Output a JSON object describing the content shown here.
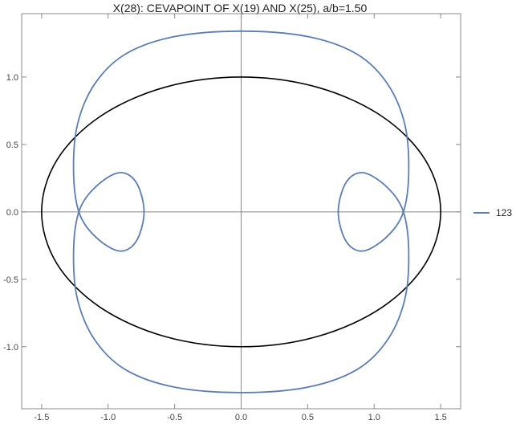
{
  "chart_data": {
    "type": "line",
    "title": "X(28): CEVAPOINT OF X(19) AND X(25), a/b=1.50",
    "xlabel": "",
    "ylabel": "",
    "xlim": [
      -1.65,
      1.65
    ],
    "ylim": [
      -1.46,
      1.47
    ],
    "xticks": [
      -1.5,
      -1.0,
      -0.5,
      0.0,
      0.5,
      1.0,
      1.5
    ],
    "xtick_labels": [
      "-1.5",
      "-1.0",
      "-0.5",
      "0.0",
      "0.5",
      "1.0",
      "1.5"
    ],
    "yticks": [
      -1.0,
      -0.5,
      0.0,
      0.5,
      1.0
    ],
    "ytick_labels": [
      "-1.0",
      "-0.5",
      "0.0",
      "0.5",
      "1.0"
    ],
    "grid": false,
    "legend_position": "right",
    "series": [
      {
        "name": "",
        "color": "#000000",
        "points": [
          [
            1.5,
            0.0
          ],
          [
            1.386,
            0.383
          ],
          [
            1.061,
            0.707
          ],
          [
            0.574,
            0.924
          ],
          [
            0.0,
            1.0
          ],
          [
            -0.574,
            0.924
          ],
          [
            -1.061,
            0.707
          ],
          [
            -1.386,
            0.383
          ],
          [
            -1.5,
            0.0
          ],
          [
            -1.386,
            -0.383
          ],
          [
            -1.061,
            -0.707
          ],
          [
            -0.574,
            -0.924
          ],
          [
            0.0,
            -1.0
          ],
          [
            0.574,
            -0.924
          ],
          [
            1.061,
            -0.707
          ],
          [
            1.386,
            -0.383
          ],
          [
            1.5,
            0.0
          ]
        ]
      },
      {
        "name": "123",
        "color": "#5b7db3",
        "points": [
          [
            0.0,
            1.34
          ],
          [
            0.5,
            1.3
          ],
          [
            0.87,
            1.17
          ],
          [
            1.1,
            0.95
          ],
          [
            1.23,
            0.65
          ],
          [
            1.26,
            0.3
          ],
          [
            1.22,
            0.0
          ],
          [
            1.1,
            -0.18
          ],
          [
            0.92,
            -0.29
          ],
          [
            0.79,
            -0.22
          ],
          [
            0.73,
            0.0
          ],
          [
            0.79,
            0.22
          ],
          [
            0.92,
            0.29
          ],
          [
            1.1,
            0.18
          ],
          [
            1.22,
            0.0
          ],
          [
            1.26,
            -0.3
          ],
          [
            1.23,
            -0.65
          ],
          [
            1.1,
            -0.95
          ],
          [
            0.87,
            -1.17
          ],
          [
            0.5,
            -1.3
          ],
          [
            0.0,
            -1.34
          ],
          [
            -0.5,
            -1.3
          ],
          [
            -0.87,
            -1.17
          ],
          [
            -1.1,
            -0.95
          ],
          [
            -1.23,
            -0.65
          ],
          [
            -1.26,
            -0.3
          ],
          [
            -1.22,
            0.0
          ],
          [
            -1.1,
            0.18
          ],
          [
            -0.92,
            0.29
          ],
          [
            -0.79,
            0.22
          ],
          [
            -0.73,
            0.0
          ],
          [
            -0.79,
            -0.22
          ],
          [
            -0.92,
            -0.29
          ],
          [
            -1.1,
            -0.18
          ],
          [
            -1.22,
            0.0
          ],
          [
            -1.26,
            0.3
          ],
          [
            -1.23,
            0.65
          ],
          [
            -1.1,
            0.95
          ],
          [
            -0.87,
            1.17
          ],
          [
            -0.5,
            1.3
          ],
          [
            0.0,
            1.34
          ]
        ]
      }
    ]
  }
}
